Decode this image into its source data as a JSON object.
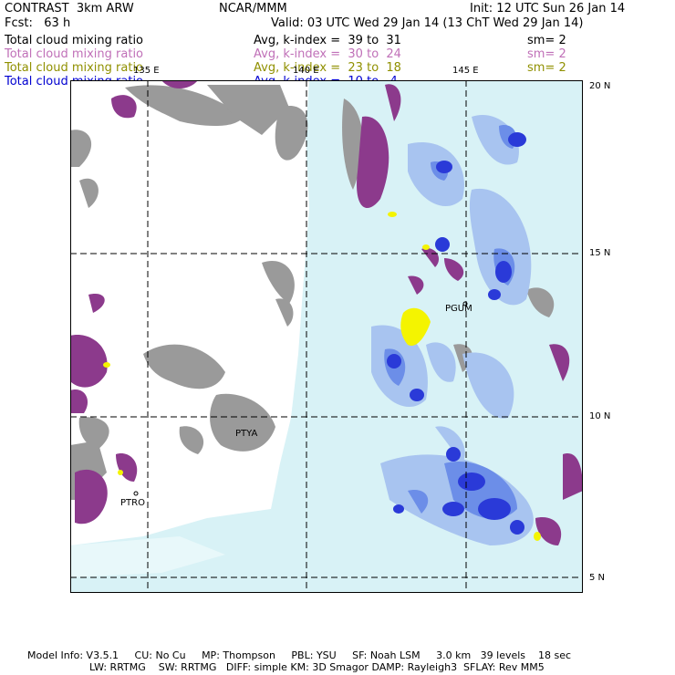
{
  "header": {
    "left_title": "CONTRAST  3km ARW",
    "center_title": "NCAR/MMM",
    "init": "Init: 12 UTC Sun 26 Jan 14",
    "fcst": "Fcst:   63 h",
    "valid": "Valid: 03 UTC Wed 29 Jan 14 (13 ChT Wed 29 Jan 14)"
  },
  "fields": [
    {
      "name": "Total cloud mixing ratio",
      "avg": "Avg, k-index =  39 to  31",
      "sm": "sm= 2",
      "color": "#000000"
    },
    {
      "name": "Total cloud mixing ratio",
      "avg": "Avg, k-index =  30 to  24",
      "sm": "sm= 2",
      "color": "#c070b8"
    },
    {
      "name": "Total cloud mixing ratio",
      "avg": "Avg, k-index =  23 to  18",
      "sm": "sm= 2",
      "color": "#909000"
    },
    {
      "name": "Total cloud mixing ratio",
      "avg": "Avg, k-index =  10 to   4",
      "sm": "",
      "color": "#0000d0"
    }
  ],
  "map": {
    "lon_labels": [
      "135 E",
      "140 E",
      "145 E"
    ],
    "lat_labels": [
      "20 N",
      "15 N",
      "10 N",
      "5 N"
    ],
    "stations": [
      "PGUM",
      "PTYA",
      "PTRO"
    ],
    "colors": {
      "ocean": "#d8f2f6",
      "land": "#ffffff",
      "gray_cloud": "#9a9a9a",
      "purple_cloud": "#8c3a8c",
      "yellow_cloud": "#f4f400",
      "blue_light": "#a8c4f0",
      "blue_mid": "#6c8ee8",
      "blue_dark": "#2a3ad8"
    }
  },
  "footer": {
    "line1": "Model Info: V3.5.1     CU: No Cu     MP: Thompson     PBL: YSU     SF: Noah LSM     3.0 km   39 levels    18 sec",
    "line2": "LW: RRTMG    SW: RRTMG   DIFF: simple KM: 3D Smagor DAMP: Rayleigh3  SFLAY: Rev MM5"
  }
}
